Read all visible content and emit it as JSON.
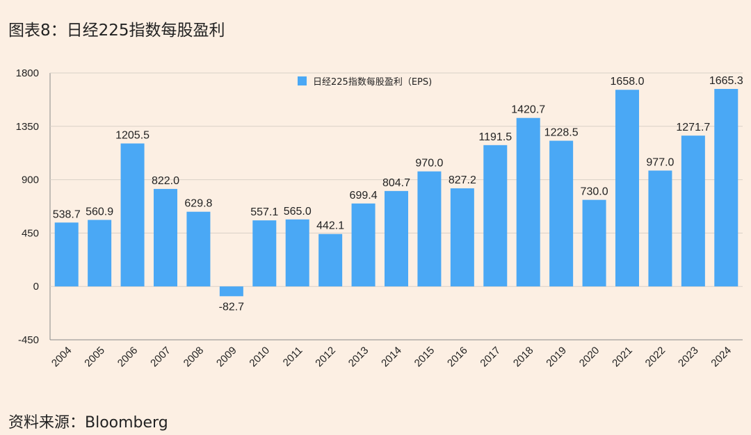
{
  "title": "图表8：日经225指数每股盈利",
  "source": "资料来源：Bloomberg",
  "colors": {
    "bar": "#4aa8f5",
    "background": "#fcefe3",
    "grid": "#d9d0c7"
  },
  "chart_data": {
    "type": "bar",
    "title": "",
    "xlabel": "",
    "ylabel": "",
    "ylim": [
      -450,
      1800
    ],
    "yticks": [
      -450,
      0,
      450,
      900,
      1350,
      1800
    ],
    "grid": "horizontal",
    "legend_position": "top-center",
    "categories": [
      "2004",
      "2005",
      "2006",
      "2007",
      "2008",
      "2009",
      "2010",
      "2011",
      "2012",
      "2013",
      "2014",
      "2015",
      "2016",
      "2017",
      "2018",
      "2019",
      "2020",
      "2021",
      "2022",
      "2023",
      "2024"
    ],
    "series": [
      {
        "name": "日经225指数每股盈利（EPS)",
        "values": [
          538.7,
          560.9,
          1205.5,
          822.0,
          629.8,
          -82.7,
          557.1,
          565.0,
          442.1,
          699.4,
          804.7,
          970.0,
          827.2,
          1191.5,
          1420.7,
          1228.5,
          730.0,
          1658.0,
          977.0,
          1271.7,
          1665.3
        ]
      }
    ]
  }
}
